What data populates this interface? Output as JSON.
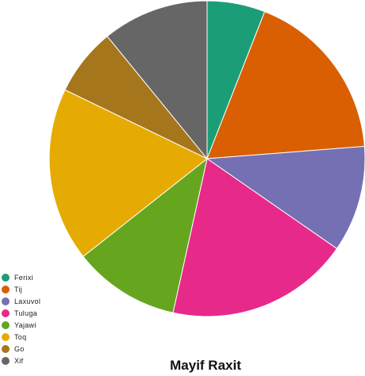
{
  "chart_data": {
    "type": "pie",
    "title": "Mayif Raxit",
    "start_angle_deg": 0,
    "direction": "clockwise",
    "legend_position": "bottom-left",
    "slices": [
      {
        "label": "Ferixi",
        "value": 6,
        "color": "#1b9e77"
      },
      {
        "label": "Tij",
        "value": 18,
        "color": "#d95f02"
      },
      {
        "label": "Laxuvol",
        "value": 11,
        "color": "#7570b3"
      },
      {
        "label": "Tuluga",
        "value": 19,
        "color": "#e7298a"
      },
      {
        "label": "Yajawi",
        "value": 11,
        "color": "#66a61e"
      },
      {
        "label": "Toq",
        "value": 18,
        "color": "#e6ab02"
      },
      {
        "label": "Go",
        "value": 7,
        "color": "#a6761d"
      },
      {
        "label": "Xif",
        "value": 11,
        "color": "#666666"
      }
    ]
  }
}
